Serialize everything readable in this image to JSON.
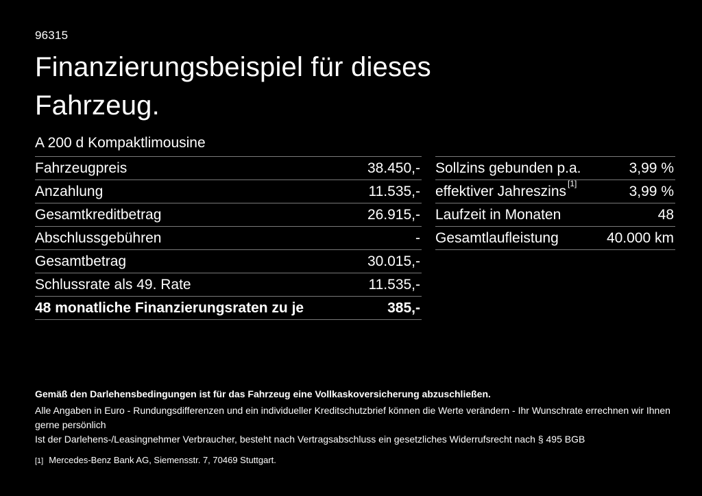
{
  "page": {
    "background_color": "#000000",
    "text_color": "#ffffff",
    "divider_color": "#7a7a7a"
  },
  "header": {
    "ref_number": "96315",
    "title": "Finanzierungsbeispiel für dieses\nFahrzeug.",
    "subtitle": "A 200 d Kompaktlimousine"
  },
  "finance_table": {
    "rows": [
      {
        "label": "Fahrzeugpreis",
        "value": "38.450,-",
        "bold": false
      },
      {
        "label": "Anzahlung",
        "value": "11.535,-",
        "bold": false
      },
      {
        "label": "Gesamtkreditbetrag",
        "value": "26.915,-",
        "bold": false
      },
      {
        "label": "Abschlussgebühren",
        "value": "-",
        "bold": false
      },
      {
        "label": "Gesamtbetrag",
        "value": "30.015,-",
        "bold": false
      },
      {
        "label": "Schlussrate als 49. Rate",
        "value": "11.535,-",
        "bold": false
      },
      {
        "label": "48 monatliche Finanzierungsraten zu je",
        "value": "385,-",
        "bold": true
      }
    ]
  },
  "conditions_table": {
    "rows": [
      {
        "label": "Sollzins gebunden p.a.",
        "value": "3,99 %",
        "bold": false
      },
      {
        "label": "effektiver Jahreszins",
        "sup": "[1]",
        "value": "3,99 %",
        "bold": false
      },
      {
        "label": "Laufzeit in Monaten",
        "value": "48",
        "bold": false
      },
      {
        "label": "Gesamtlaufleistung",
        "value": "40.000 km",
        "bold": false
      }
    ]
  },
  "footer": {
    "bold_note": "Gemäß den Darlehensbedingungen ist für das Fahrzeug eine Vollkaskoversicherung abzuschließen.",
    "note_line1": "Alle Angaben in Euro - Rundungsdifferenzen und ein individueller Kreditschutzbrief können die Werte verändern - Ihr Wunschrate errechnen wir Ihnen gerne persönlich",
    "note_line2": "Ist der Darlehens-/Leasingnehmer Verbraucher, besteht nach Vertragsabschluss ein gesetzliches Widerrufsrecht nach § 495 BGB",
    "footnote_marker": "[1]",
    "footnote_text": "Mercedes-Benz Bank AG, Siemensstr. 7, 70469 Stuttgart."
  }
}
